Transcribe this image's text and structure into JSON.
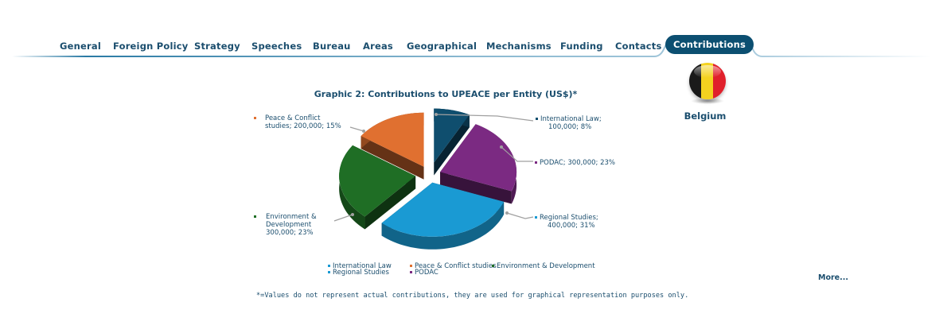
{
  "nav": {
    "items": [
      "General",
      "Foreign Policy",
      "Strategy",
      "Speeches",
      "Bureau",
      "Areas",
      "Geographical",
      "Mechanisms",
      "Funding",
      "Contacts",
      "Contributions"
    ],
    "active_index": 10
  },
  "country": {
    "name": "Belgium",
    "flag_colors": [
      "#1a1a1a",
      "#f4d21f",
      "#e0202b"
    ]
  },
  "chart_title": "Graphic 2: Contributions to UPEACE per Entity (US$)*",
  "chart_data": {
    "type": "pie",
    "title": "Graphic 2: Contributions to UPEACE per Entity (US$)*",
    "slices": [
      {
        "name": "International Law",
        "value": 100000,
        "percent": 8,
        "color": "#0f4e6e"
      },
      {
        "name": "PODAC",
        "value": 300000,
        "percent": 23,
        "color": "#7b2a82"
      },
      {
        "name": "Regional Studies",
        "value": 400000,
        "percent": 31,
        "color": "#1a9ad3"
      },
      {
        "name": "Environment & Development",
        "value": 300000,
        "percent": 23,
        "color": "#1f6e25"
      },
      {
        "name": "Peace & Conflict studies",
        "value": 200000,
        "percent": 15,
        "color": "#e07030"
      }
    ],
    "data_labels": [
      {
        "lines": [
          "International Law;",
          "100,000; 8%"
        ]
      },
      {
        "lines": [
          "PODAC; 300,000; 23%"
        ]
      },
      {
        "lines": [
          "Regional Studies;",
          "400,000; 31%"
        ]
      },
      {
        "lines": [
          "Environment &",
          "Development",
          "300,000; 23%"
        ]
      },
      {
        "lines": [
          "Peace & Conflict",
          "studies; 200,000; 15%"
        ]
      }
    ],
    "legend": [
      "International Law",
      "Peace & Conflict studies",
      "Environment & Development",
      "Regional Studies",
      "PODAC"
    ],
    "legend_placement": "bottom"
  },
  "more_link": "More...",
  "footnote": "*=Values do not represent actual contributions, they are used for graphical representation purposes only."
}
